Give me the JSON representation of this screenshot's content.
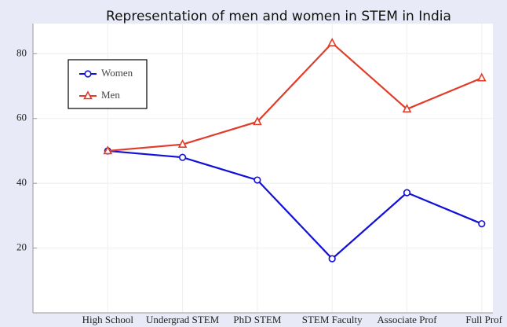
{
  "chart_data": {
    "type": "line",
    "title": "Representation of men and women in STEM in India",
    "categories": [
      "High School",
      "Undergrad STEM",
      "PhD STEM",
      "STEM Faculty",
      "Associate Prof",
      "Full Prof"
    ],
    "series": [
      {
        "name": "Women",
        "color": "#1010d8",
        "marker": "circle",
        "values": [
          50,
          48,
          41,
          16.7,
          37.1,
          27.5
        ]
      },
      {
        "name": "Men",
        "color": "#e03c28",
        "marker": "triangle",
        "values": [
          50,
          52,
          59,
          83.3,
          62.9,
          72.5
        ]
      }
    ],
    "ylim": [
      0,
      89.3
    ],
    "yticks": [
      20,
      40,
      60,
      80
    ],
    "grid": true,
    "legend": "upper left"
  }
}
